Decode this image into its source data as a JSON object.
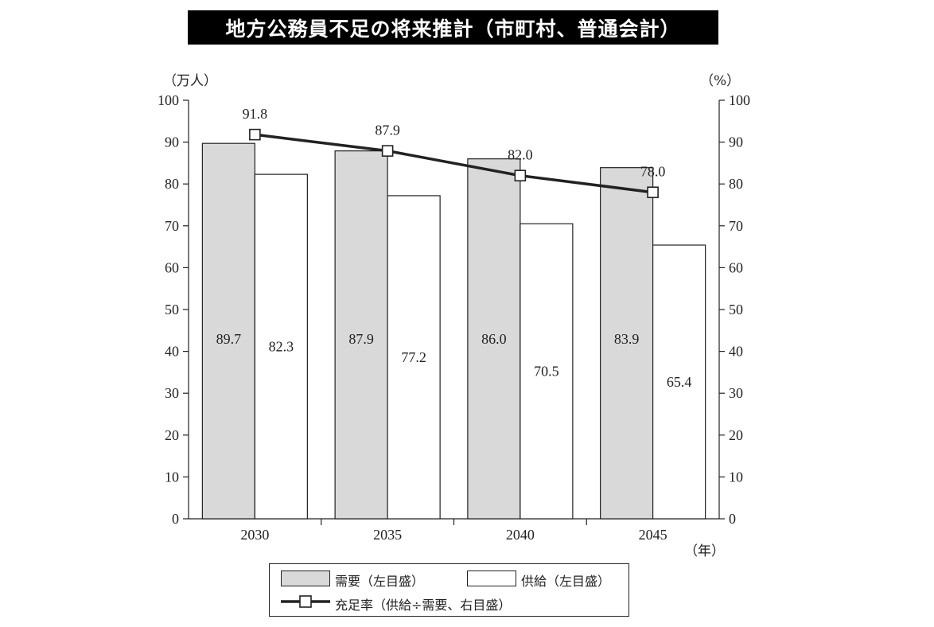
{
  "chart_data": {
    "type": "bar+line",
    "title": "地方公務員不足の将来推計（市町村、普通会計）",
    "categories": [
      "2030",
      "2035",
      "2040",
      "2045"
    ],
    "x_unit": "（年）",
    "y_left": {
      "unit": "（万人）",
      "range": [
        0,
        100
      ],
      "ticks": [
        0,
        10,
        20,
        30,
        40,
        50,
        60,
        70,
        80,
        90,
        100
      ]
    },
    "y_right": {
      "unit": "（%）",
      "range": [
        0,
        100
      ],
      "ticks": [
        0,
        10,
        20,
        30,
        40,
        50,
        60,
        70,
        80,
        90,
        100
      ]
    },
    "series": [
      {
        "name": "需要（左目盛）",
        "type": "bar",
        "axis": "left",
        "color": "#d9d9d9",
        "values": [
          89.7,
          87.9,
          86.0,
          83.9
        ],
        "labels": [
          "89.7",
          "87.9",
          "86.0",
          "83.9"
        ]
      },
      {
        "name": "供給（左目盛）",
        "type": "bar",
        "axis": "left",
        "color": "#ffffff",
        "values": [
          82.3,
          77.2,
          70.5,
          65.4
        ],
        "labels": [
          "82.3",
          "77.2",
          "70.5",
          "65.4"
        ]
      },
      {
        "name": "充足率（供給÷需要、右目盛）",
        "type": "line",
        "axis": "right",
        "color": "#222222",
        "values": [
          91.8,
          87.9,
          82.0,
          78.0
        ],
        "labels": [
          "91.8",
          "87.9",
          "82.0",
          "78.0"
        ]
      }
    ],
    "grid": false,
    "legend_position": "bottom"
  }
}
